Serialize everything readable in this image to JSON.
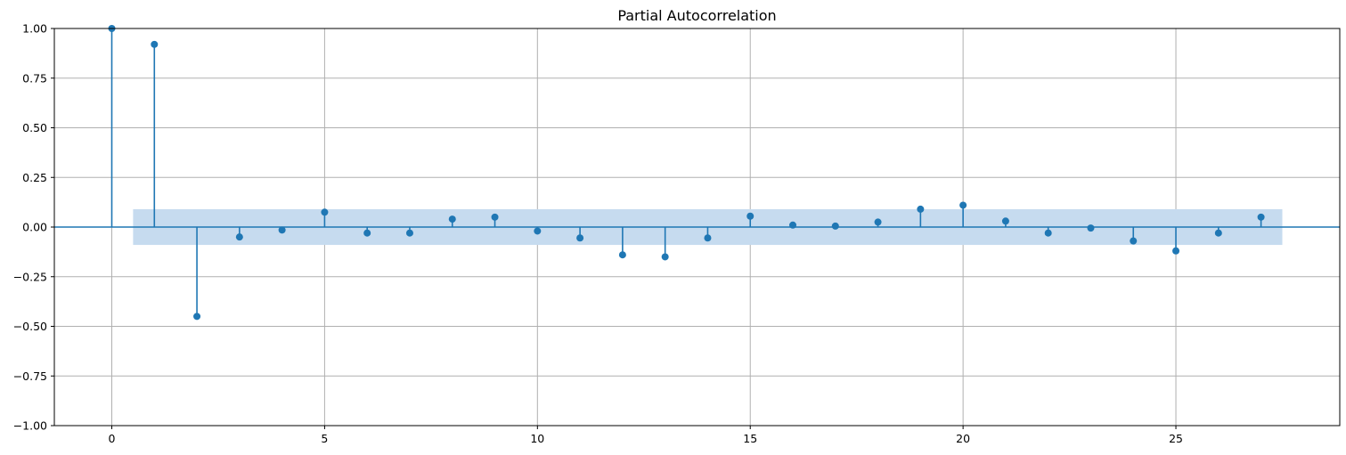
{
  "chart_data": {
    "type": "stem",
    "title": "Partial Autocorrelation",
    "xlabel": "",
    "ylabel": "",
    "xlim": [
      -1.35,
      28.85
    ],
    "ylim": [
      -1.0,
      1.0
    ],
    "x_ticks": [
      0,
      5,
      10,
      15,
      20,
      25
    ],
    "x_tick_labels": [
      "0",
      "5",
      "10",
      "15",
      "20",
      "25"
    ],
    "y_ticks": [
      -1.0,
      -0.75,
      -0.5,
      -0.25,
      0.0,
      0.25,
      0.5,
      0.75,
      1.0
    ],
    "y_tick_labels": [
      "−1.00",
      "−0.75",
      "−0.50",
      "−0.25",
      "0.00",
      "0.25",
      "0.50",
      "0.75",
      "1.00"
    ],
    "grid": true,
    "lags": [
      0,
      1,
      2,
      3,
      4,
      5,
      6,
      7,
      8,
      9,
      10,
      11,
      12,
      13,
      14,
      15,
      16,
      17,
      18,
      19,
      20,
      21,
      22,
      23,
      24,
      25,
      26,
      27
    ],
    "values": [
      1.0,
      0.92,
      -0.45,
      -0.05,
      -0.015,
      0.075,
      -0.03,
      -0.03,
      0.04,
      0.05,
      -0.02,
      -0.055,
      -0.14,
      -0.15,
      -0.055,
      0.055,
      0.01,
      0.005,
      0.025,
      0.09,
      0.11,
      0.03,
      -0.03,
      -0.005,
      -0.07,
      -0.12,
      -0.03,
      0.05
    ],
    "confidence_band": {
      "x_start": 0.5,
      "x_end": 27.5,
      "upper": 0.09,
      "lower": -0.09
    },
    "colors": {
      "series": "#1f77b4",
      "band": "#c6dbef",
      "grid": "#b0b0b0",
      "axis": "#000000"
    }
  }
}
